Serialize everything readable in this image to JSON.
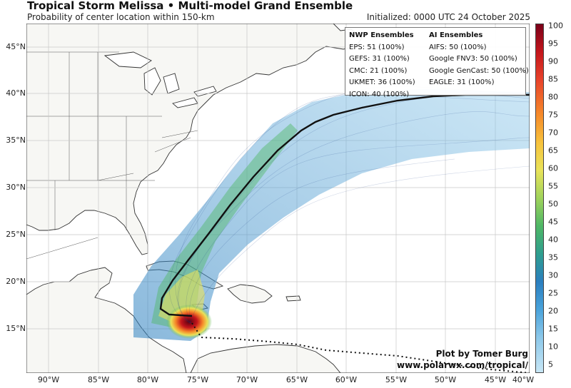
{
  "header": {
    "title": "Tropical Storm Melissa • Multi-model Grand Ensemble",
    "subtitle": "Probability of center location within 150-km",
    "initialized": "Initialized: 0000 UTC 24 October 2025"
  },
  "axes": {
    "lat_labels": [
      "45°N",
      "40°N",
      "35°N",
      "30°N",
      "25°N",
      "20°N",
      "15°N"
    ],
    "lon_labels": [
      "90°W",
      "85°W",
      "80°W",
      "75°W",
      "70°W",
      "65°W",
      "60°W",
      "55°W",
      "50°W",
      "45°W",
      "40°W"
    ]
  },
  "legend": {
    "nwp_title": "NWP Ensembles",
    "nwp_items": [
      "EPS: 51 (100%)",
      "GEFS: 31 (100%)",
      "CMC: 21 (100%)",
      "UKMET: 36 (100%)",
      "ICON: 40 (100%)"
    ],
    "ai_title": "AI Ensembles",
    "ai_items": [
      "AIFS: 50 (100%)",
      "Google FNV3: 50 (100%)",
      "Google GenCast: 50 (100%)",
      "EAGLE: 31 (100%)"
    ]
  },
  "colorbar": {
    "ticks": [
      "100",
      "95",
      "90",
      "85",
      "80",
      "75",
      "70",
      "65",
      "60",
      "55",
      "50",
      "45",
      "40",
      "35",
      "30",
      "25",
      "20",
      "15",
      "10",
      "5"
    ]
  },
  "credit": {
    "line1": "Plot by Tomer Burg",
    "line2": "www.polarwx.com/tropical/"
  },
  "colors": {
    "land": "#f7f7f4",
    "ocean": "#ffffff",
    "grid": "#c8c8c8",
    "coast": "#333333",
    "mean_track": "#111111"
  }
}
